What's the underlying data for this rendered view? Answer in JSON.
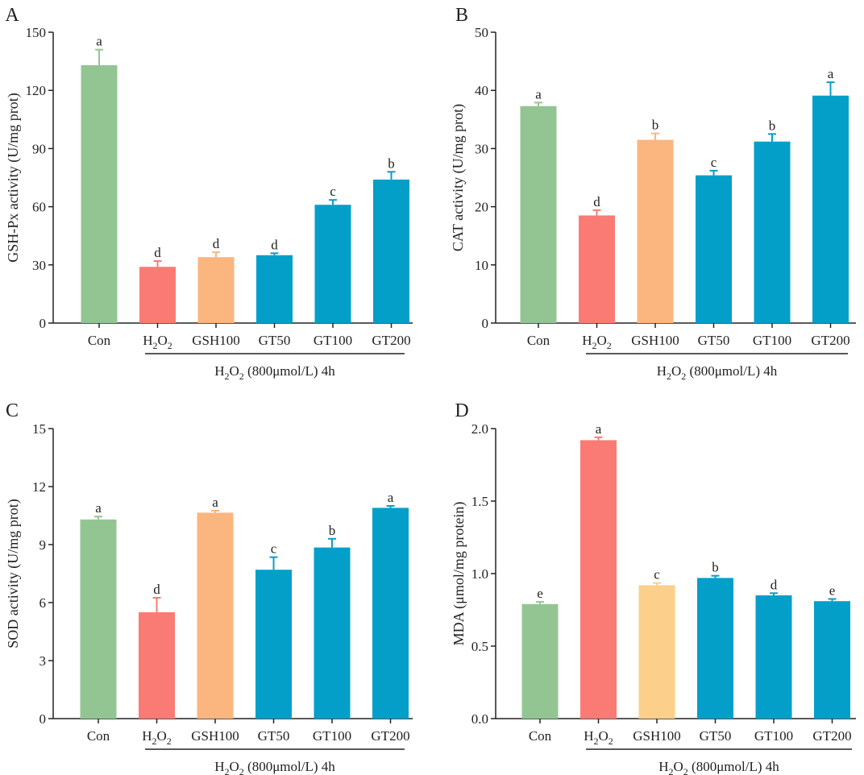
{
  "colors": {
    "con": "#93c593",
    "h2o2": "#f97b74",
    "gsh": "#fbb57f",
    "gsh_mda": "#fcd08a",
    "gt": "#049fc9",
    "axis": "#222222"
  },
  "group_label": "H₂O₂ (800μmol/L) 4h",
  "chart_data": [
    {
      "panel": "A",
      "type": "bar",
      "ylabel": "GSH-Px activity (U/mg prot)",
      "ylim": [
        0,
        150
      ],
      "yticks": [
        0,
        30,
        60,
        90,
        120,
        150
      ],
      "ytick_labels": [
        "0",
        "30",
        "60",
        "90",
        "120",
        "150"
      ],
      "categories": [
        "Con",
        "H₂O₂",
        "GSH100",
        "GT50",
        "GT100",
        "GT200"
      ],
      "values": [
        133,
        29,
        34,
        35,
        61,
        74
      ],
      "errors": [
        8,
        3,
        2.5,
        1,
        2.5,
        4
      ],
      "letters": [
        "a",
        "d",
        "d",
        "d",
        "c",
        "b"
      ],
      "bar_colors": [
        "con",
        "h2o2",
        "gsh",
        "gt",
        "gt",
        "gt"
      ]
    },
    {
      "panel": "B",
      "type": "bar",
      "ylabel": "CAT activity (U/mg prot)",
      "ylim": [
        0,
        50
      ],
      "yticks": [
        0,
        10,
        20,
        30,
        40,
        50
      ],
      "ytick_labels": [
        "0",
        "10",
        "20",
        "30",
        "40",
        "50"
      ],
      "categories": [
        "Con",
        "H₂O₂",
        "GSH100",
        "GT50",
        "GT100",
        "GT200"
      ],
      "values": [
        37.3,
        18.5,
        31.5,
        25.4,
        31.2,
        39.1
      ],
      "errors": [
        0.6,
        0.9,
        1.1,
        0.8,
        1.3,
        2.3
      ],
      "letters": [
        "a",
        "d",
        "b",
        "c",
        "b",
        "a"
      ],
      "bar_colors": [
        "con",
        "h2o2",
        "gsh",
        "gt",
        "gt",
        "gt"
      ]
    },
    {
      "panel": "C",
      "type": "bar",
      "ylabel": "SOD activity (U/mg prot)",
      "ylim": [
        0,
        15
      ],
      "yticks": [
        0,
        3,
        6,
        9,
        12,
        15
      ],
      "ytick_labels": [
        "0",
        "3",
        "6",
        "9",
        "12",
        "15"
      ],
      "categories": [
        "Con",
        "H₂O₂",
        "GSH100",
        "GT50",
        "GT100",
        "GT200"
      ],
      "values": [
        10.3,
        5.5,
        10.65,
        7.7,
        8.85,
        10.9
      ],
      "errors": [
        0.15,
        0.75,
        0.1,
        0.65,
        0.45,
        0.1
      ],
      "letters": [
        "a",
        "d",
        "a",
        "c",
        "b",
        "a"
      ],
      "bar_colors": [
        "con",
        "h2o2",
        "gsh",
        "gt",
        "gt",
        "gt"
      ]
    },
    {
      "panel": "D",
      "type": "bar",
      "ylabel": "MDA (μmol/mg protein)",
      "ylim": [
        0,
        2.0
      ],
      "yticks": [
        0,
        0.5,
        1.0,
        1.5,
        2.0
      ],
      "ytick_labels": [
        "0.0",
        "0.5",
        "1.0",
        "1.5",
        "2.0"
      ],
      "categories": [
        "Con",
        "H₂O₂",
        "GSH100",
        "GT50",
        "GT100",
        "GT200"
      ],
      "values": [
        0.79,
        1.92,
        0.92,
        0.97,
        0.85,
        0.81
      ],
      "errors": [
        0.015,
        0.02,
        0.015,
        0.015,
        0.015,
        0.015
      ],
      "letters": [
        "e",
        "a",
        "c",
        "b",
        "d",
        "e"
      ],
      "bar_colors": [
        "con",
        "h2o2",
        "gsh_mda",
        "gt",
        "gt",
        "gt"
      ]
    }
  ]
}
